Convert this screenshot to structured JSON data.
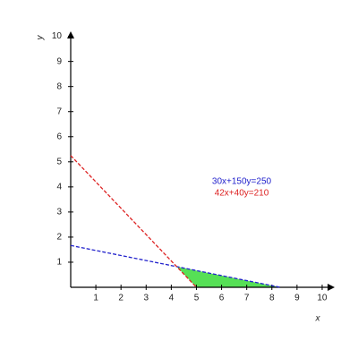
{
  "chart_data": {
    "type": "line",
    "x_label": "x",
    "y_label": "y",
    "series": [
      {
        "name": "30x+150y=250",
        "color": "#2222cc",
        "x": [
          0,
          8.333
        ],
        "values": [
          1.667,
          0
        ]
      },
      {
        "name": "42x+40y=210",
        "color": "#dd2222",
        "x": [
          0,
          5
        ],
        "values": [
          5.25,
          0
        ]
      }
    ],
    "region": {
      "color": "#44dd44",
      "x": [
        4.216,
        5,
        8.333
      ],
      "y": [
        0.823,
        0,
        0
      ]
    },
    "xlim": [
      0,
      10.5
    ],
    "ylim": [
      0,
      10.2
    ],
    "xticks": [
      1,
      2,
      3,
      4,
      5,
      6,
      7,
      8,
      9,
      10
    ],
    "yticks": [
      1,
      2,
      3,
      4,
      5,
      6,
      7,
      8,
      9,
      10
    ],
    "dashed": true
  }
}
